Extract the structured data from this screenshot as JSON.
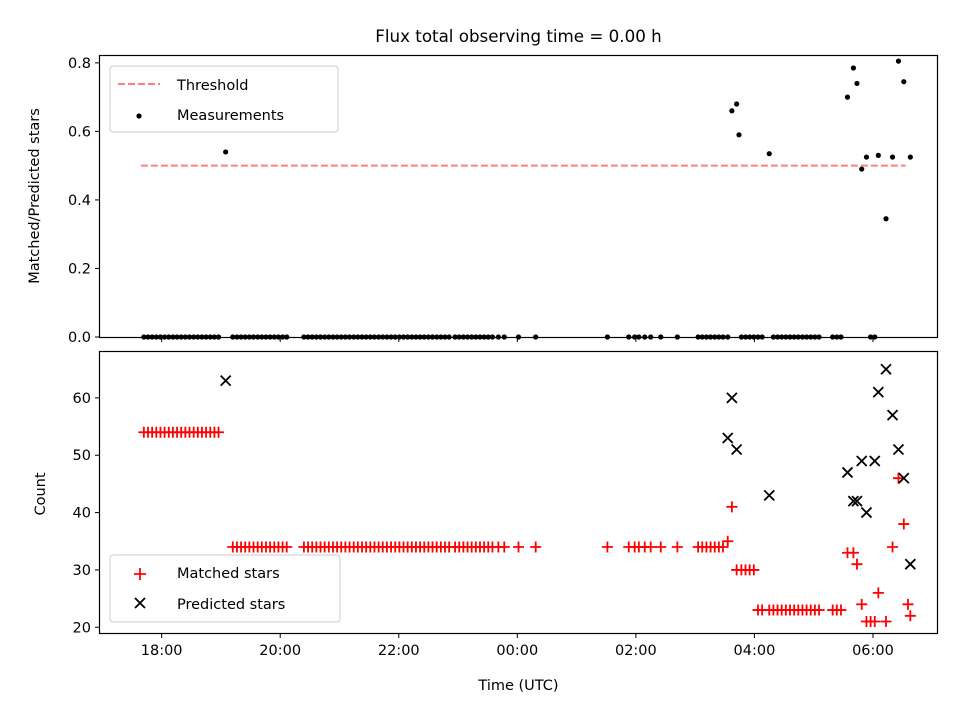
{
  "figure": {
    "title": "Flux total observing time = 0.00 h",
    "xlabel": "Time (UTC)"
  },
  "chart_data": [
    {
      "type": "scatter",
      "panel": "top",
      "ylabel": "Matched/Predicted stars",
      "xlabel": "Time (UTC)",
      "x_unit": "hours (UTC, continuing past 24:00)",
      "xlim": [
        16.96,
        31.08
      ],
      "ylim": [
        0.0,
        0.82
      ],
      "x_ticks": [
        18,
        20,
        22,
        24,
        26,
        28,
        30
      ],
      "x_tick_labels": [
        "18:00",
        "20:00",
        "22:00",
        "00:00",
        "02:00",
        "04:00",
        "06:00"
      ],
      "y_ticks": [
        0.0,
        0.2,
        0.4,
        0.6,
        0.8
      ],
      "y_tick_labels": [
        "0.0",
        "0.2",
        "0.4",
        "0.6",
        "0.8"
      ],
      "legend_position": "upper left",
      "series": [
        {
          "name": "Threshold",
          "style": "dashed-line",
          "color": "#ff7f7f",
          "x": [
            17.65,
            30.55
          ],
          "y": [
            0.5,
            0.5
          ]
        },
        {
          "name": "Measurements",
          "style": "dot",
          "color": "#000000",
          "x": [
            17.7,
            17.77,
            17.84,
            17.91,
            17.98,
            18.05,
            18.12,
            18.19,
            18.26,
            18.33,
            18.4,
            18.47,
            18.54,
            18.61,
            18.68,
            18.75,
            18.82,
            18.89,
            18.96,
            19.08,
            19.2,
            19.27,
            19.34,
            19.41,
            19.48,
            19.55,
            19.62,
            19.69,
            19.76,
            19.83,
            19.9,
            19.97,
            20.04,
            20.11,
            20.4,
            20.47,
            20.54,
            20.61,
            20.68,
            20.75,
            20.82,
            20.89,
            20.96,
            21.03,
            21.1,
            21.17,
            21.24,
            21.31,
            21.38,
            21.45,
            21.52,
            21.59,
            21.66,
            21.73,
            21.8,
            21.87,
            21.94,
            22.01,
            22.08,
            22.15,
            22.22,
            22.29,
            22.36,
            22.43,
            22.5,
            22.57,
            22.64,
            22.71,
            22.78,
            22.85,
            22.95,
            23.02,
            23.09,
            23.16,
            23.23,
            23.3,
            23.37,
            23.44,
            23.51,
            23.58,
            23.68,
            23.78,
            24.02,
            24.31,
            25.52,
            25.88,
            25.98,
            26.05,
            26.15,
            26.25,
            26.42,
            26.7,
            27.05,
            27.12,
            27.19,
            27.26,
            27.33,
            27.4,
            27.47,
            27.55,
            27.62,
            27.7,
            27.74,
            27.78,
            27.85,
            27.92,
            27.99,
            28.06,
            28.13,
            28.25,
            28.32,
            28.39,
            28.46,
            28.53,
            28.6,
            28.67,
            28.74,
            28.81,
            28.88,
            28.95,
            29.02,
            29.09,
            29.32,
            29.39,
            29.46,
            29.57,
            29.67,
            29.73,
            29.81,
            29.89,
            29.96,
            30.03,
            30.09,
            30.22,
            30.33,
            30.43,
            30.52,
            30.63
          ],
          "y": [
            0,
            0,
            0,
            0,
            0,
            0,
            0,
            0,
            0,
            0,
            0,
            0,
            0,
            0,
            0,
            0,
            0,
            0,
            0,
            0.54,
            0,
            0,
            0,
            0,
            0,
            0,
            0,
            0,
            0,
            0,
            0,
            0,
            0,
            0,
            0,
            0,
            0,
            0,
            0,
            0,
            0,
            0,
            0,
            0,
            0,
            0,
            0,
            0,
            0,
            0,
            0,
            0,
            0,
            0,
            0,
            0,
            0,
            0,
            0,
            0,
            0,
            0,
            0,
            0,
            0,
            0,
            0,
            0,
            0,
            0,
            0,
            0,
            0,
            0,
            0,
            0,
            0,
            0,
            0,
            0,
            0,
            0,
            0,
            0,
            0,
            0,
            0,
            0,
            0,
            0,
            0,
            0,
            0,
            0,
            0,
            0,
            0,
            0,
            0,
            0,
            0.66,
            0.68,
            0.59,
            0,
            0,
            0,
            0,
            0,
            0,
            0.535,
            0,
            0,
            0,
            0,
            0,
            0,
            0,
            0,
            0,
            0,
            0,
            0,
            0,
            0,
            0,
            0.7,
            0.785,
            0.74,
            0.49,
            0.525,
            0,
            0,
            0.53,
            0.345,
            0.525,
            0.805,
            0.745,
            0.525
          ]
        }
      ]
    },
    {
      "type": "scatter",
      "panel": "bottom",
      "ylabel": "Count",
      "xlabel": "Time (UTC)",
      "x_unit": "hours (UTC, continuing past 24:00)",
      "xlim": [
        16.96,
        31.08
      ],
      "ylim": [
        19,
        68
      ],
      "x_ticks": [
        18,
        20,
        22,
        24,
        26,
        28,
        30
      ],
      "x_tick_labels": [
        "18:00",
        "20:00",
        "22:00",
        "00:00",
        "02:00",
        "04:00",
        "06:00"
      ],
      "y_ticks": [
        20,
        30,
        40,
        50,
        60
      ],
      "y_tick_labels": [
        "20",
        "30",
        "40",
        "50",
        "60"
      ],
      "legend_position": "lower left",
      "series": [
        {
          "name": "Matched stars",
          "style": "plus",
          "color": "#ff0000",
          "x": [
            17.7,
            17.77,
            17.84,
            17.91,
            17.98,
            18.05,
            18.12,
            18.19,
            18.26,
            18.33,
            18.4,
            18.47,
            18.54,
            18.61,
            18.68,
            18.75,
            18.82,
            18.89,
            18.96,
            19.2,
            19.27,
            19.34,
            19.41,
            19.48,
            19.55,
            19.62,
            19.69,
            19.76,
            19.83,
            19.9,
            19.97,
            20.04,
            20.11,
            20.4,
            20.47,
            20.54,
            20.61,
            20.68,
            20.75,
            20.82,
            20.89,
            20.96,
            21.03,
            21.1,
            21.17,
            21.24,
            21.31,
            21.38,
            21.45,
            21.52,
            21.59,
            21.66,
            21.73,
            21.8,
            21.87,
            21.94,
            22.01,
            22.08,
            22.15,
            22.22,
            22.29,
            22.36,
            22.43,
            22.5,
            22.57,
            22.64,
            22.71,
            22.78,
            22.85,
            22.95,
            23.02,
            23.09,
            23.16,
            23.23,
            23.3,
            23.37,
            23.44,
            23.51,
            23.58,
            23.68,
            23.78,
            24.02,
            24.31,
            25.52,
            25.88,
            25.98,
            26.05,
            26.15,
            26.25,
            26.42,
            26.7,
            27.05,
            27.12,
            27.19,
            27.26,
            27.33,
            27.4,
            27.47,
            27.55,
            27.62,
            27.7,
            27.78,
            27.85,
            27.92,
            27.99,
            28.06,
            28.13,
            28.25,
            28.32,
            28.39,
            28.46,
            28.53,
            28.6,
            28.67,
            28.74,
            28.81,
            28.88,
            28.95,
            29.02,
            29.09,
            29.32,
            29.39,
            29.46,
            29.57,
            29.67,
            29.73,
            29.81,
            29.89,
            29.96,
            30.03,
            30.09,
            30.22,
            30.33,
            30.43,
            30.52,
            30.59,
            30.63
          ],
          "y": [
            54,
            54,
            54,
            54,
            54,
            54,
            54,
            54,
            54,
            54,
            54,
            54,
            54,
            54,
            54,
            54,
            54,
            54,
            54,
            34,
            34,
            34,
            34,
            34,
            34,
            34,
            34,
            34,
            34,
            34,
            34,
            34,
            34,
            34,
            34,
            34,
            34,
            34,
            34,
            34,
            34,
            34,
            34,
            34,
            34,
            34,
            34,
            34,
            34,
            34,
            34,
            34,
            34,
            34,
            34,
            34,
            34,
            34,
            34,
            34,
            34,
            34,
            34,
            34,
            34,
            34,
            34,
            34,
            34,
            34,
            34,
            34,
            34,
            34,
            34,
            34,
            34,
            34,
            34,
            34,
            34,
            34,
            34,
            34,
            34,
            34,
            34,
            34,
            34,
            34,
            34,
            34,
            34,
            34,
            34,
            34,
            34,
            34,
            35,
            41,
            30,
            30,
            30,
            30,
            30,
            23,
            23,
            23,
            23,
            23,
            23,
            23,
            23,
            23,
            23,
            23,
            23,
            23,
            23,
            23,
            23,
            23,
            23,
            33,
            33,
            31,
            24,
            21,
            21,
            21,
            26,
            21,
            34,
            46,
            38,
            24,
            22
          ]
        },
        {
          "name": "Predicted stars",
          "style": "cross",
          "color": "#000000",
          "x": [
            19.08,
            27.55,
            27.62,
            27.7,
            28.25,
            29.57,
            29.67,
            29.73,
            29.81,
            29.89,
            30.03,
            30.09,
            30.22,
            30.33,
            30.43,
            30.52,
            30.63
          ],
          "y": [
            63,
            53,
            60,
            51,
            43,
            47,
            42,
            42,
            49,
            40,
            49,
            61,
            65,
            57,
            51,
            46,
            31
          ]
        }
      ]
    }
  ]
}
